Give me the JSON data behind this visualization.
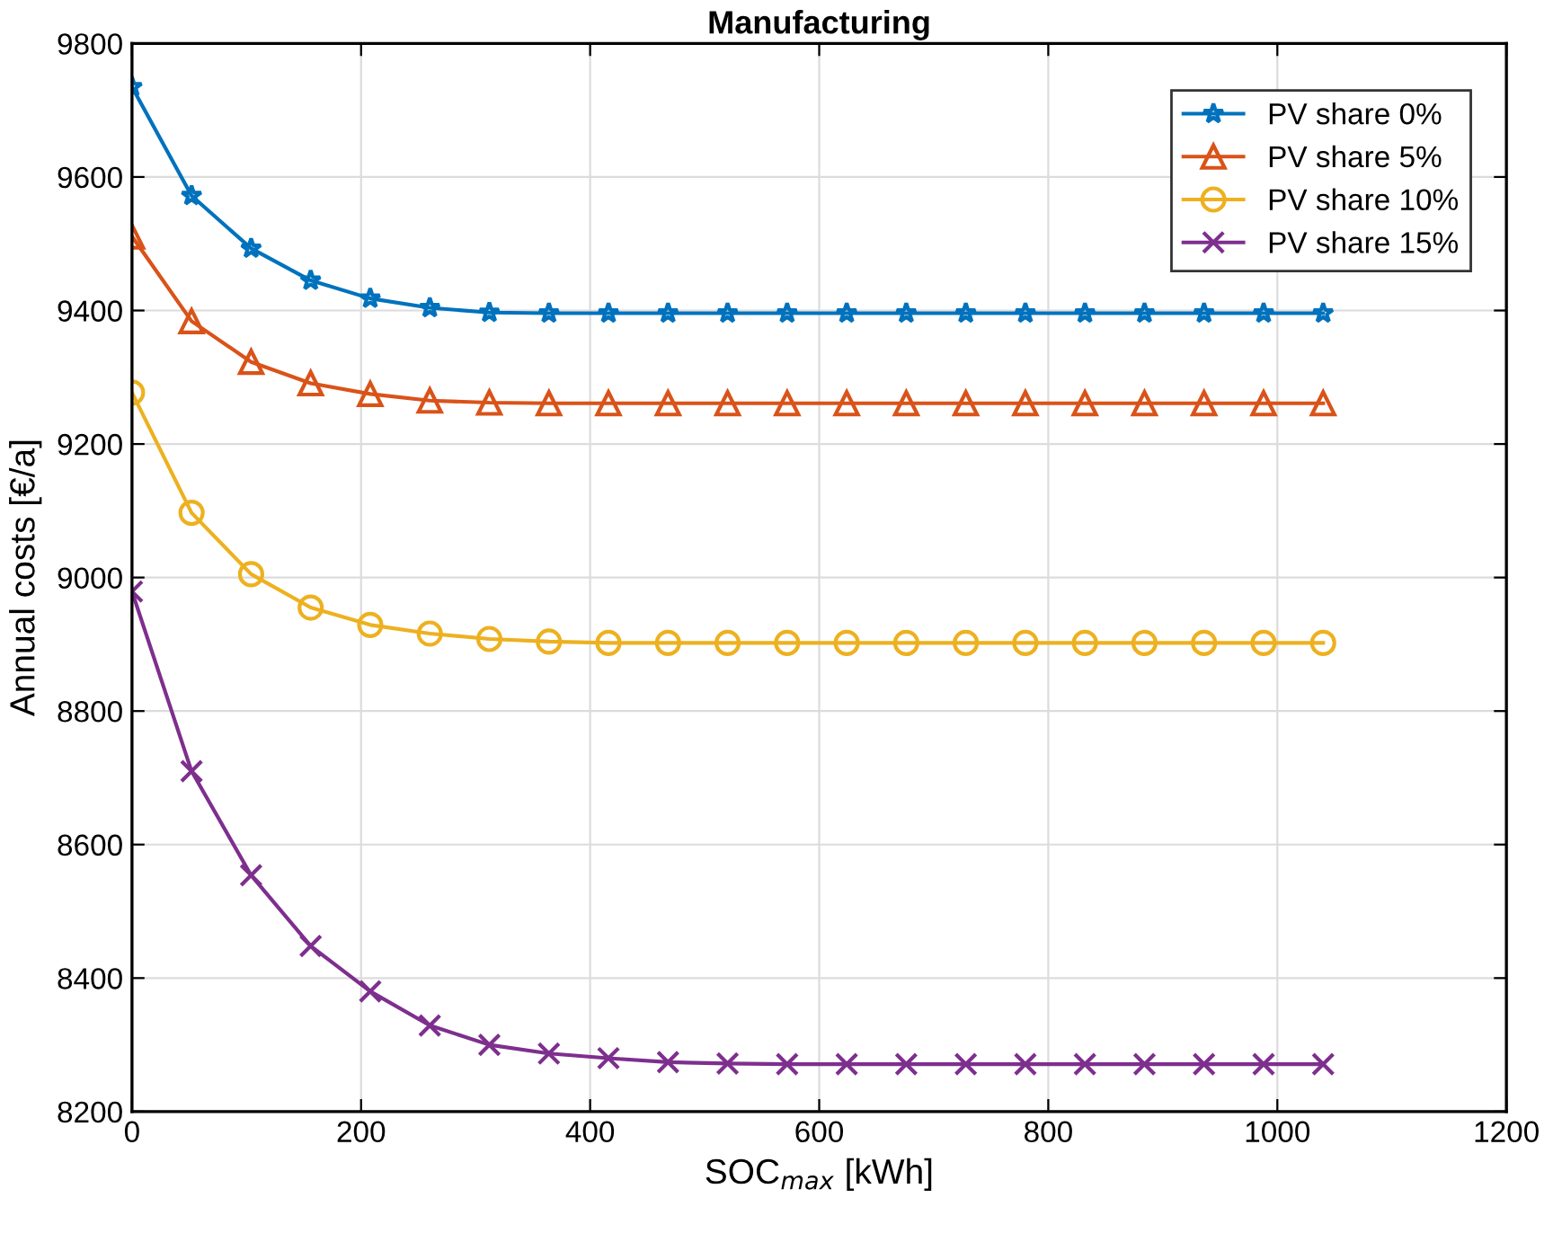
{
  "chart_data": {
    "type": "line",
    "title": "Manufacturing",
    "xlabel": "SOC$_{max}$ [kWh]",
    "ylabel": "Annual costs [€/a]",
    "x": [
      0,
      52,
      104,
      156,
      208,
      260,
      312,
      364,
      416,
      468,
      520,
      572,
      624,
      676,
      728,
      780,
      832,
      884,
      936,
      988,
      1040
    ],
    "xlim": [
      0,
      1200
    ],
    "xticks": [
      0,
      200,
      400,
      600,
      800,
      1000,
      1200
    ],
    "ylim": [
      8200,
      9800
    ],
    "yticks": [
      8200,
      8400,
      8600,
      8800,
      9000,
      9200,
      9400,
      9600,
      9800
    ],
    "grid": true,
    "legend": "top right",
    "series": [
      {
        "name": "PV share 0%",
        "color": "#0072bd",
        "marker": "star",
        "values": [
          9735,
          9572,
          9493,
          9445,
          9418,
          9404,
          9397,
          9396,
          9396,
          9396,
          9396,
          9396,
          9396,
          9396,
          9396,
          9396,
          9396,
          9396,
          9396,
          9396,
          9396
        ]
      },
      {
        "name": "PV share 5%",
        "color": "#d95319",
        "marker": "triangle",
        "values": [
          9511,
          9384,
          9323,
          9291,
          9275,
          9265,
          9262,
          9261,
          9261,
          9261,
          9261,
          9261,
          9261,
          9261,
          9261,
          9261,
          9261,
          9261,
          9261,
          9261,
          9261
        ]
      },
      {
        "name": "PV share 10%",
        "color": "#edb120",
        "marker": "circle",
        "values": [
          9277,
          9097,
          9005,
          8955,
          8929,
          8916,
          8908,
          8904,
          8902,
          8902,
          8902,
          8902,
          8902,
          8902,
          8902,
          8902,
          8902,
          8902,
          8902,
          8902,
          8902
        ]
      },
      {
        "name": "PV share 15%",
        "color": "#7e2f8e",
        "marker": "cross",
        "values": [
          8979,
          8710,
          8554,
          8448,
          8380,
          8329,
          8300,
          8287,
          8280,
          8274,
          8272,
          8271,
          8271,
          8271,
          8271,
          8271,
          8271,
          8271,
          8271,
          8271,
          8271
        ]
      }
    ]
  }
}
